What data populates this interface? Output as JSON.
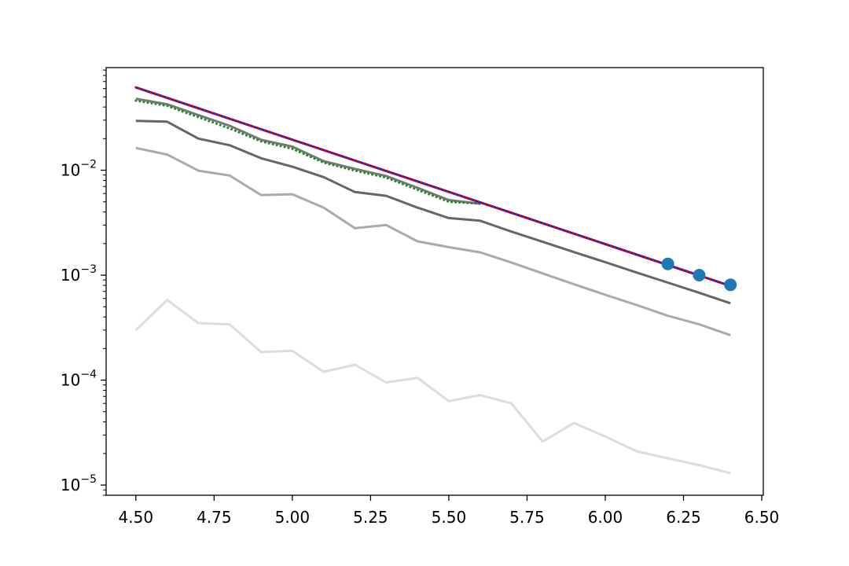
{
  "chart_data": {
    "type": "line",
    "title": "",
    "xlabel": "",
    "ylabel": "",
    "xlim": [
      4.405,
      6.505
    ],
    "ylim": [
      8e-06,
      0.095
    ],
    "yscale": "log",
    "grid": false,
    "legend": "none",
    "x_ticks": [
      4.5,
      4.75,
      5.0,
      5.25,
      5.5,
      5.75,
      6.0,
      6.25,
      6.5
    ],
    "x_tick_labels": [
      "4.50",
      "4.75",
      "5.00",
      "5.25",
      "5.50",
      "5.75",
      "6.00",
      "6.25",
      "6.50"
    ],
    "y_ticks": [
      1e-05,
      0.0001,
      0.001,
      0.01
    ],
    "y_tick_labels": [
      {
        "base": "10",
        "exp": "−5"
      },
      {
        "base": "10",
        "exp": "−4"
      },
      {
        "base": "10",
        "exp": "−3"
      },
      {
        "base": "10",
        "exp": "−2"
      }
    ],
    "series": [
      {
        "color": "#dcdcdc",
        "style": "solid",
        "x": [
          4.5,
          4.6,
          4.7,
          4.8,
          4.9,
          5.0,
          5.1,
          5.2,
          5.3,
          5.4,
          5.5,
          5.6,
          5.7,
          5.8,
          5.9,
          6.0,
          6.1,
          6.2,
          6.3,
          6.4
        ],
        "y": [
          0.0003,
          0.00058,
          0.00035,
          0.00034,
          0.000185,
          0.00019,
          0.00012,
          0.00014,
          9.5e-05,
          0.000105,
          6.3e-05,
          7.2e-05,
          6e-05,
          2.6e-05,
          3.9e-05,
          2.9e-05,
          2.1e-05,
          1.8e-05,
          1.55e-05,
          1.3e-05
        ]
      },
      {
        "color": "#aaaaaa",
        "style": "solid",
        "x": [
          4.5,
          4.6,
          4.7,
          4.8,
          4.9,
          5.0,
          5.1,
          5.2,
          5.3,
          5.4,
          5.5,
          5.6,
          5.7,
          5.8,
          5.9,
          6.0,
          6.1,
          6.2,
          6.3,
          6.4
        ],
        "y": [
          0.0163,
          0.0141,
          0.0099,
          0.0089,
          0.0058,
          0.0059,
          0.0044,
          0.0028,
          0.003,
          0.0021,
          0.00185,
          0.00165,
          0.00132,
          0.00104,
          0.00082,
          0.00065,
          0.00052,
          0.00041,
          0.00034,
          0.000268
        ]
      },
      {
        "color": "#666666",
        "style": "solid",
        "x": [
          4.5,
          4.6,
          4.7,
          4.8,
          4.9,
          5.0,
          5.1,
          5.2,
          5.3,
          5.4,
          5.5,
          5.6,
          5.7,
          5.8,
          5.9,
          6.0,
          6.1,
          6.2,
          6.3,
          6.4
        ],
        "y": [
          0.0295,
          0.029,
          0.02,
          0.0173,
          0.013,
          0.0108,
          0.0086,
          0.0062,
          0.0057,
          0.0044,
          0.0035,
          0.0033,
          0.0026,
          0.00208,
          0.00166,
          0.00133,
          0.00106,
          0.00085,
          0.00068,
          0.00054
        ]
      },
      {
        "color": "#777777",
        "style": "solid",
        "x": [
          4.5,
          4.6,
          4.7,
          4.8,
          4.9,
          5.0,
          5.1,
          5.2,
          5.3,
          5.4,
          5.5,
          5.6
        ],
        "y": [
          0.048,
          0.0425,
          0.0335,
          0.0265,
          0.0195,
          0.0168,
          0.0122,
          0.0103,
          0.0088,
          0.0068,
          0.0052,
          0.0048
        ]
      },
      {
        "color": "#228b22",
        "style": "dotted",
        "x": [
          4.5,
          4.6,
          4.7,
          4.8,
          4.9,
          5.0,
          5.1,
          5.2,
          5.3,
          5.4,
          5.5,
          5.6
        ],
        "y": [
          0.046,
          0.041,
          0.032,
          0.025,
          0.0188,
          0.016,
          0.0118,
          0.0099,
          0.0085,
          0.0065,
          0.005,
          0.0048
        ]
      },
      {
        "color": "#1f1fd0",
        "style": "solid",
        "x": [
          4.5,
          6.4
        ],
        "y": [
          0.0615,
          0.00079
        ]
      },
      {
        "color": "#e00000",
        "style": "dotted",
        "x": [
          4.5,
          6.4
        ],
        "y": [
          0.0615,
          0.00079
        ]
      }
    ],
    "markers": {
      "color": "#1f77b4",
      "x": [
        6.2,
        6.3,
        6.4
      ],
      "y": [
        0.00128,
        0.001,
        0.00081
      ]
    }
  }
}
